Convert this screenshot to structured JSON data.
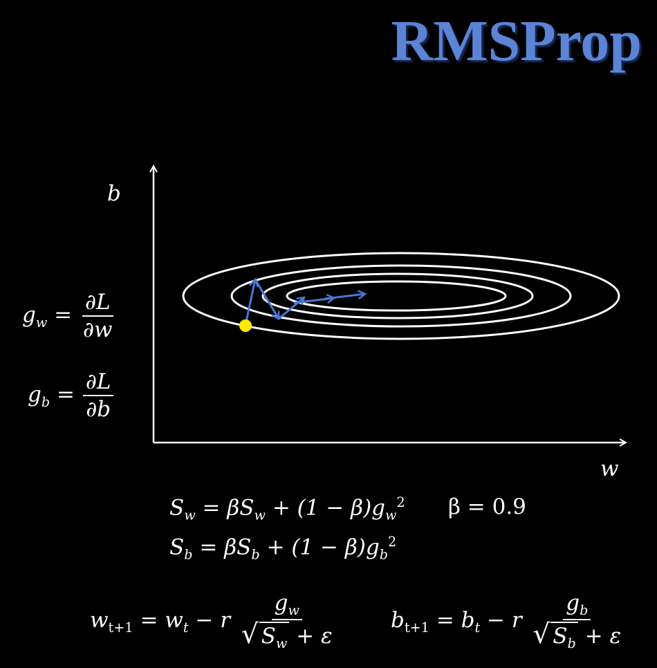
{
  "title": "RMSProp",
  "axes": {
    "y_label": "b",
    "x_label": "w"
  },
  "colors": {
    "title": "#5b84d6",
    "path": "#4a78d4",
    "start_point": "#ffeb00",
    "contours": "#ffffff",
    "background": "#000000"
  },
  "gradients": {
    "gw": {
      "lhs": "g",
      "lhs_sub": "w",
      "eq": "=",
      "num": "∂L",
      "den": "∂w"
    },
    "gb": {
      "lhs": "g",
      "lhs_sub": "b",
      "eq": "=",
      "num": "∂L",
      "den": "∂b"
    }
  },
  "updates": {
    "sw": {
      "text": "S",
      "sub": "w",
      "rhs": "= βS",
      "rhs_sub": "w",
      "rest": " + (1 − β)g",
      "rest_sub": "w",
      "sup": "2"
    },
    "beta": "β = 0.9",
    "sb": {
      "text": "S",
      "sub": "b",
      "rhs": "= βS",
      "rhs_sub": "b",
      "rest": " + (1 − β)g",
      "rest_sub": "b",
      "sup": "2"
    }
  },
  "rules": {
    "w": {
      "lhs": "w",
      "lhs_sub": "t+1",
      "eq": "= w",
      "eq_sub": "t",
      "minus": " − r",
      "num": "g",
      "num_sub": "w",
      "rad": "S",
      "rad_sub": "w",
      "eps": " + ε"
    },
    "b": {
      "lhs": "b",
      "lhs_sub": "t+1",
      "eq": "= b",
      "eq_sub": "t",
      "minus": " − r",
      "num": "g",
      "num_sub": "b",
      "rad": "S",
      "rad_sub": "b",
      "eps": " + ε"
    }
  }
}
